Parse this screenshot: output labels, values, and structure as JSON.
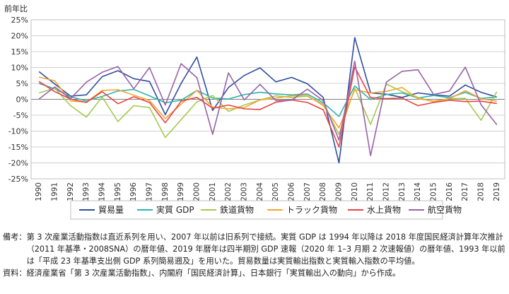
{
  "chart_data": {
    "type": "line",
    "unit_label": "前年比",
    "ylim": [
      -25,
      25
    ],
    "y_ticks": [
      25,
      20,
      15,
      10,
      5,
      0,
      -5,
      -10,
      -15,
      -20,
      -25
    ],
    "y_tick_labels": [
      "25%",
      "20%",
      "15%",
      "10%",
      "5%",
      "0%",
      "-5%",
      "-10%",
      "-15%",
      "-20%",
      "-25%"
    ],
    "grid": true,
    "legend_position": "bottom",
    "categories": [
      "1990",
      "1991",
      "1992",
      "1993",
      "1994",
      "1995",
      "1996",
      "1997",
      "1998",
      "1999",
      "2000",
      "2001",
      "2002",
      "2003",
      "2004",
      "2005",
      "2006",
      "2007",
      "2008",
      "2009",
      "2010",
      "2011",
      "2012",
      "2013",
      "2014",
      "2015",
      "2016",
      "2017",
      "2018",
      "2019"
    ],
    "series": [
      {
        "name": "貿易量",
        "color": "#2e4ea0",
        "values": [
          8.7,
          4.8,
          1.0,
          1.4,
          7.1,
          9.0,
          6.5,
          5.6,
          -4.8,
          5.0,
          13.3,
          -3.5,
          3.7,
          7.5,
          9.9,
          5.5,
          6.9,
          4.9,
          0.6,
          -20.0,
          19.4,
          2.0,
          1.6,
          0.6,
          2.0,
          1.4,
          1.0,
          4.5,
          2.2,
          0.7
        ]
      },
      {
        "name": "実質 GDP",
        "color": "#2ab5ae",
        "values": [
          5.0,
          3.3,
          0.8,
          -0.5,
          0.9,
          2.6,
          3.1,
          1.1,
          -1.1,
          -0.3,
          2.8,
          0.4,
          0.1,
          1.5,
          2.2,
          1.7,
          1.4,
          1.7,
          -1.1,
          -5.4,
          4.2,
          -0.1,
          1.5,
          2.0,
          0.4,
          1.2,
          0.5,
          2.2,
          0.3,
          0.7
        ]
      },
      {
        "name": "鉄道貨物",
        "color": "#a6c94f",
        "values": [
          2.0,
          3.5,
          -2.0,
          -5.6,
          0.7,
          -7.0,
          -2.0,
          -2.6,
          -12.0,
          -6.4,
          -0.8,
          1.2,
          -3.8,
          -1.8,
          -0.2,
          1.1,
          0.6,
          1.0,
          -1.6,
          -11.0,
          3.5,
          -7.9,
          4.8,
          2.4,
          0.6,
          -0.8,
          0.2,
          0.3,
          -6.6,
          2.4
        ]
      },
      {
        "name": "トラック貨物",
        "color": "#f5a431",
        "values": [
          7.0,
          5.8,
          -0.5,
          -0.9,
          2.8,
          3.0,
          1.3,
          -0.4,
          -6.1,
          -1.5,
          2.8,
          -2.5,
          -3.0,
          -2.6,
          -0.2,
          0.4,
          1.1,
          1.2,
          -2.0,
          -9.0,
          3.0,
          2.0,
          2.5,
          3.7,
          0.2,
          -0.6,
          0.2,
          2.7,
          0.2,
          -0.6
        ]
      },
      {
        "name": "水上貨物",
        "color": "#e8433f",
        "values": [
          5.6,
          2.4,
          0.1,
          -1.0,
          2.4,
          -1.4,
          0.8,
          -1.0,
          -7.4,
          -0.6,
          0.6,
          -2.8,
          -1.8,
          -3.0,
          -3.2,
          -0.9,
          -0.2,
          -1.0,
          -3.3,
          -15.0,
          10.2,
          0.5,
          0.2,
          0.4,
          -2.0,
          -1.0,
          -0.3,
          -0.7,
          -0.6,
          -1.3
        ]
      },
      {
        "name": "航空貨物",
        "color": "#9a62a8",
        "values": [
          0.1,
          3.9,
          0.2,
          5.4,
          8.5,
          10.3,
          3.3,
          10.0,
          -1.8,
          11.2,
          6.8,
          -11.0,
          8.3,
          -0.2,
          4.7,
          -0.4,
          -0.3,
          3.2,
          -0.4,
          -12.8,
          12.0,
          -17.7,
          5.4,
          8.8,
          9.3,
          1.5,
          2.6,
          10.1,
          -1.7,
          -8.0
        ]
      }
    ]
  },
  "notes": {
    "remark_head": "備考：",
    "remark_body": "第 3 次産業活動指数は直近系列を用い、2007 年以前は旧系列で接続。実質 GDP は 1994 年以降は 2018 年度国民経済計算年次推計（2011 年基準・2008SNA）の暦年値、2019 年暦年は四半期別 GDP 速報（2020 年 1–3 月期 2 次速報値）の暦年値、1993 年以前は「平成 23 年基準支出側 GDP 系列簡易遡及」を用いた。貿易数量は実質輸出指数と実質輸入指数の平均値。",
    "source_head": "資料：",
    "source_body": "経済産業省「第 3 次産業活動指数」、内閣府「国民経済計算」、日本銀行「実質輸出入の動向」から作成。"
  }
}
